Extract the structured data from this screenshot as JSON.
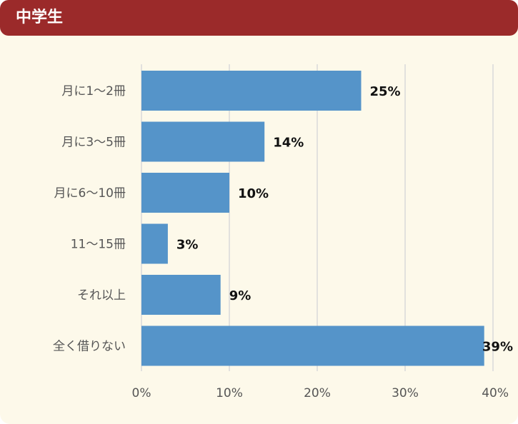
{
  "header": {
    "title": "中学生"
  },
  "colors": {
    "header_bg": "#9b2a2a",
    "panel_bg": "#fdf9ea",
    "bar": "#5594c9",
    "grid": "#d9d9d9"
  },
  "chart_data": {
    "type": "bar",
    "orientation": "horizontal",
    "categories": [
      "月に1〜2冊",
      "月に3〜5冊",
      "月に6〜10冊",
      "11〜15冊",
      "それ以上",
      "全く借りない"
    ],
    "values": [
      25,
      14,
      10,
      3,
      9,
      39
    ],
    "data_labels": [
      "25%",
      "14%",
      "10%",
      "3%",
      "9%",
      "39%"
    ],
    "xlim": [
      0,
      40
    ],
    "x_ticks": [
      0,
      10,
      20,
      30,
      40
    ],
    "x_tick_labels": [
      "0%",
      "10%",
      "20%",
      "30%",
      "40%"
    ],
    "grid": true
  }
}
